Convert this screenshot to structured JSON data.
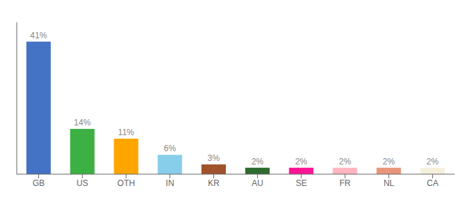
{
  "chart_data": {
    "type": "bar",
    "categories": [
      "GB",
      "US",
      "OTH",
      "IN",
      "KR",
      "AU",
      "SE",
      "FR",
      "NL",
      "CA"
    ],
    "values": [
      41,
      14,
      11,
      6,
      3,
      2,
      2,
      2,
      2,
      2
    ],
    "value_labels": [
      "41%",
      "14%",
      "11%",
      "6%",
      "3%",
      "2%",
      "2%",
      "2%",
      "2%",
      "2%"
    ],
    "colors": [
      "#4472C4",
      "#3CB043",
      "#FFA500",
      "#87CEEB",
      "#A0522D",
      "#2E6B2E",
      "#FF1493",
      "#FFB6C1",
      "#E8967A",
      "#F5F0DC"
    ],
    "ylim": [
      0,
      47
    ],
    "data_labels": true,
    "tick_labels": "x",
    "grid": false
  }
}
